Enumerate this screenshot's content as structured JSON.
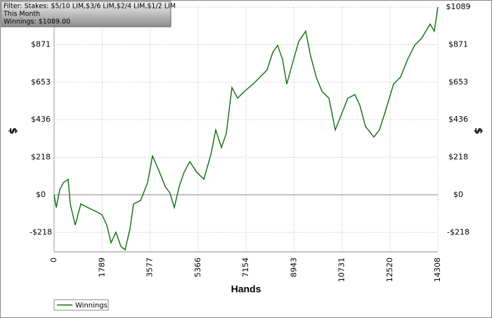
{
  "chart_data": {
    "type": "line",
    "info_box": [
      "Filter: Stakes: $5/10 LIM,$3/6 LIM,$2/4 LIM,$1/2 LIM",
      "This Month",
      "Winnings: $1089.00"
    ],
    "xlabel": "Hands",
    "ylabel": "$",
    "xlim": [
      0,
      14308
    ],
    "xticks": [
      0,
      1789,
      3577,
      5366,
      7154,
      8943,
      10731,
      12520,
      14308
    ],
    "ylim": [
      -331,
      1089
    ],
    "yticks": [
      {
        "value": -218,
        "label": "-$218"
      },
      {
        "value": 0,
        "label": "$0"
      },
      {
        "value": 218,
        "label": "$218"
      },
      {
        "value": 436,
        "label": "$436"
      },
      {
        "value": 653,
        "label": "$653"
      },
      {
        "value": 871,
        "label": "$871"
      },
      {
        "value": 1089,
        "label": "$1089"
      }
    ],
    "grid": true,
    "legend": "bottom-left",
    "x": [
      0,
      79,
      210,
      341,
      524,
      603,
      786,
      996,
      1258,
      1520,
      1782,
      1965,
      2122,
      2306,
      2489,
      2646,
      2830,
      2961,
      3223,
      3485,
      3668,
      3878,
      4140,
      4323,
      4480,
      4664,
      4847,
      5057,
      5319,
      5581,
      5843,
      6027,
      6236,
      6420,
      6630,
      6839,
      7101,
      7415,
      7677,
      7939,
      8149,
      8332,
      8516,
      8673,
      8856,
      9118,
      9380,
      9563,
      9773,
      9983,
      10245,
      10481,
      10743,
      10952,
      11214,
      11398,
      11607,
      11922,
      12131,
      12341,
      12655,
      12917,
      13179,
      13441,
      13703,
      14017,
      14174,
      14308
    ],
    "series": [
      {
        "name": "Winnings",
        "color": "#0a6e0a",
        "values": [
          0,
          -74,
          29,
          70,
          90,
          -53,
          -176,
          -53,
          -74,
          -94,
          -115,
          -176,
          -278,
          -217,
          -299,
          -319,
          -196,
          -53,
          -33,
          70,
          225,
          151,
          49,
          8,
          -74,
          49,
          131,
          192,
          131,
          90,
          233,
          376,
          274,
          356,
          622,
          560,
          601,
          642,
          683,
          724,
          826,
          867,
          785,
          642,
          744,
          888,
          949,
          806,
          683,
          601,
          560,
          376,
          479,
          560,
          581,
          519,
          397,
          335,
          376,
          479,
          642,
          683,
          785,
          867,
          908,
          990,
          949,
          1089
        ]
      }
    ]
  }
}
